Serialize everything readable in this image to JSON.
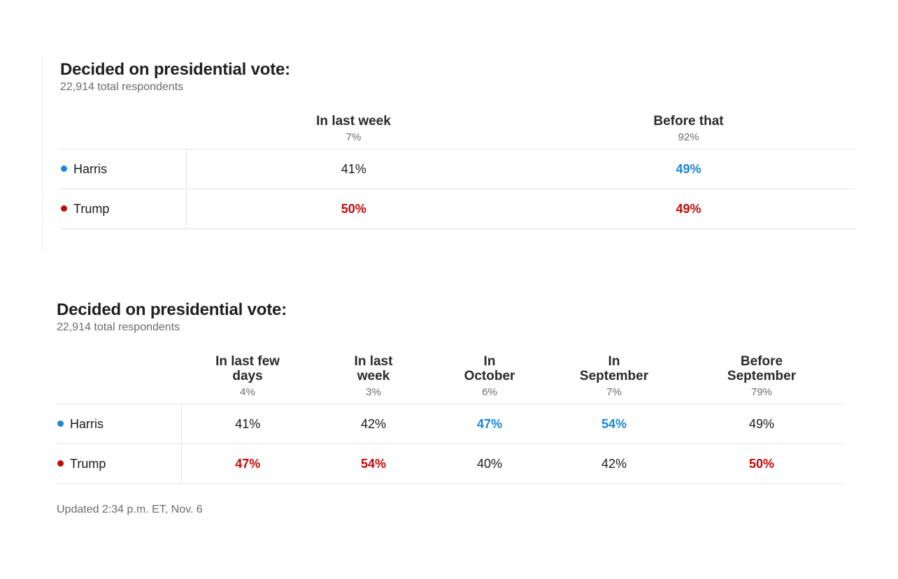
{
  "colors": {
    "harris": "#1a86d9",
    "trump": "#c10a0a"
  },
  "poll1": {
    "title": "Decided on presidential vote:",
    "subtitle": "22,914 total respondents",
    "columns": [
      {
        "label": "In last week",
        "share": "7%"
      },
      {
        "label": "Before that",
        "share": "92%"
      }
    ],
    "rows": [
      {
        "candidate": "Harris",
        "color": "harris",
        "values": [
          "41%",
          "49%"
        ],
        "leads": [
          false,
          true
        ]
      },
      {
        "candidate": "Trump",
        "color": "trump",
        "values": [
          "50%",
          "49%"
        ],
        "leads": [
          true,
          true
        ]
      }
    ]
  },
  "poll2": {
    "title": "Decided on presidential vote:",
    "subtitle": "22,914 total respondents",
    "columns": [
      {
        "label_lines": [
          "In last few",
          "days"
        ],
        "share": "4%"
      },
      {
        "label_lines": [
          "In last",
          "week"
        ],
        "share": "3%"
      },
      {
        "label_lines": [
          "In",
          "October"
        ],
        "share": "6%"
      },
      {
        "label_lines": [
          "In",
          "September"
        ],
        "share": "7%"
      },
      {
        "label_lines": [
          "Before",
          "September"
        ],
        "share": "79%"
      }
    ],
    "rows": [
      {
        "candidate": "Harris",
        "color": "harris",
        "values": [
          "41%",
          "42%",
          "47%",
          "54%",
          "49%"
        ],
        "leads": [
          false,
          false,
          true,
          true,
          false
        ]
      },
      {
        "candidate": "Trump",
        "color": "trump",
        "values": [
          "47%",
          "54%",
          "40%",
          "42%",
          "50%"
        ],
        "leads": [
          true,
          true,
          false,
          false,
          true
        ]
      }
    ]
  },
  "updated": "Updated 2:34 p.m. ET, Nov. 6",
  "chart_data": [
    {
      "type": "table",
      "title": "Decided on presidential vote:",
      "subtitle": "22,914 total respondents",
      "categories": [
        "In last week",
        "Before that"
      ],
      "category_share": [
        7,
        92
      ],
      "series": [
        {
          "name": "Harris",
          "values": [
            41,
            49
          ]
        },
        {
          "name": "Trump",
          "values": [
            50,
            49
          ]
        }
      ]
    },
    {
      "type": "table",
      "title": "Decided on presidential vote:",
      "subtitle": "22,914 total respondents",
      "categories": [
        "In last few days",
        "In last week",
        "In October",
        "In September",
        "Before September"
      ],
      "category_share": [
        4,
        3,
        6,
        7,
        79
      ],
      "series": [
        {
          "name": "Harris",
          "values": [
            41,
            42,
            47,
            54,
            49
          ]
        },
        {
          "name": "Trump",
          "values": [
            47,
            54,
            40,
            42,
            50
          ]
        }
      ]
    }
  ]
}
